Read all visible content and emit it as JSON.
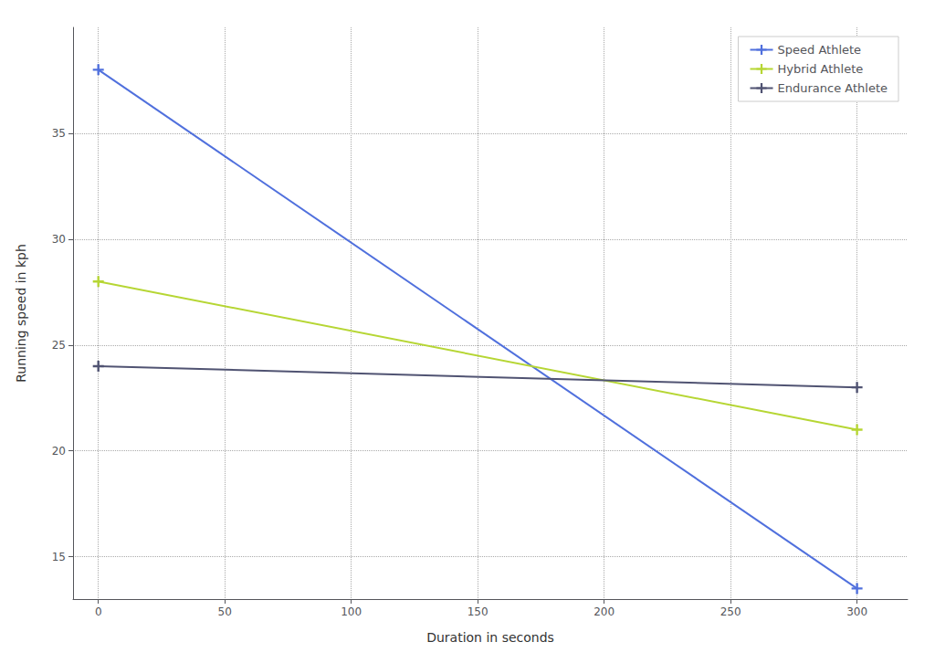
{
  "chart_data": {
    "type": "line",
    "x": [
      0,
      300
    ],
    "series": [
      {
        "name": "Speed Athlete",
        "values": [
          38,
          13.5
        ]
      },
      {
        "name": "Hybrid Athlete",
        "values": [
          28,
          21
        ]
      },
      {
        "name": "Endurance Athlete",
        "values": [
          24,
          23
        ]
      }
    ],
    "xlabel": "Duration in seconds",
    "ylabel": "Running speed in kph",
    "xlim": [
      -10,
      320
    ],
    "ylim": [
      13,
      40
    ],
    "xticks": [
      0,
      50,
      100,
      150,
      200,
      250,
      300
    ],
    "yticks": [
      15,
      20,
      25,
      30,
      35
    ],
    "grid": true,
    "legend": "upper right",
    "marker": "plus"
  }
}
